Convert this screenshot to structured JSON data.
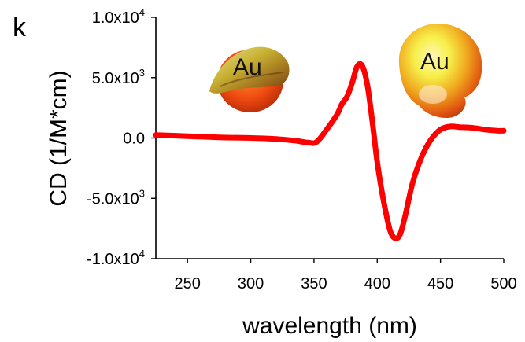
{
  "chart_data": {
    "type": "line",
    "panel_label": "k",
    "xlabel": "wavelength (nm)",
    "ylabel": "CD (1/M*cm)",
    "xlim": [
      225,
      500
    ],
    "ylim": [
      -10000,
      10000
    ],
    "x_ticks": [
      250,
      300,
      350,
      400,
      450,
      500
    ],
    "y_ticks": [
      {
        "value": 10000,
        "mantissa": "1.0x10",
        "exp": "4"
      },
      {
        "value": 5000,
        "mantissa": "5.0x10",
        "exp": "3"
      },
      {
        "value": 0,
        "mantissa": "0.0",
        "exp": ""
      },
      {
        "value": -5000,
        "mantissa": "-5.0x10",
        "exp": "3"
      },
      {
        "value": -10000,
        "mantissa": "-1.0x10",
        "exp": "4"
      }
    ],
    "grid": false,
    "series": [
      {
        "color": "#ff0000",
        "x": [
          225,
          250,
          275,
          300,
          320,
          335,
          345,
          352,
          360,
          368,
          372,
          376,
          380,
          384,
          388,
          392,
          396,
          400,
          405,
          410,
          414,
          418,
          422,
          428,
          435,
          442,
          450,
          458,
          465,
          475,
          485,
          495,
          500
        ],
        "y": [
          250,
          150,
          50,
          0,
          -80,
          -220,
          -380,
          -330,
          700,
          1900,
          2800,
          3400,
          4500,
          5900,
          6000,
          4500,
          1500,
          -2000,
          -5200,
          -7600,
          -8300,
          -8000,
          -6500,
          -3700,
          -1600,
          -200,
          700,
          950,
          900,
          850,
          700,
          600,
          600
        ]
      }
    ],
    "annotations": [
      "Au",
      "Au"
    ]
  }
}
